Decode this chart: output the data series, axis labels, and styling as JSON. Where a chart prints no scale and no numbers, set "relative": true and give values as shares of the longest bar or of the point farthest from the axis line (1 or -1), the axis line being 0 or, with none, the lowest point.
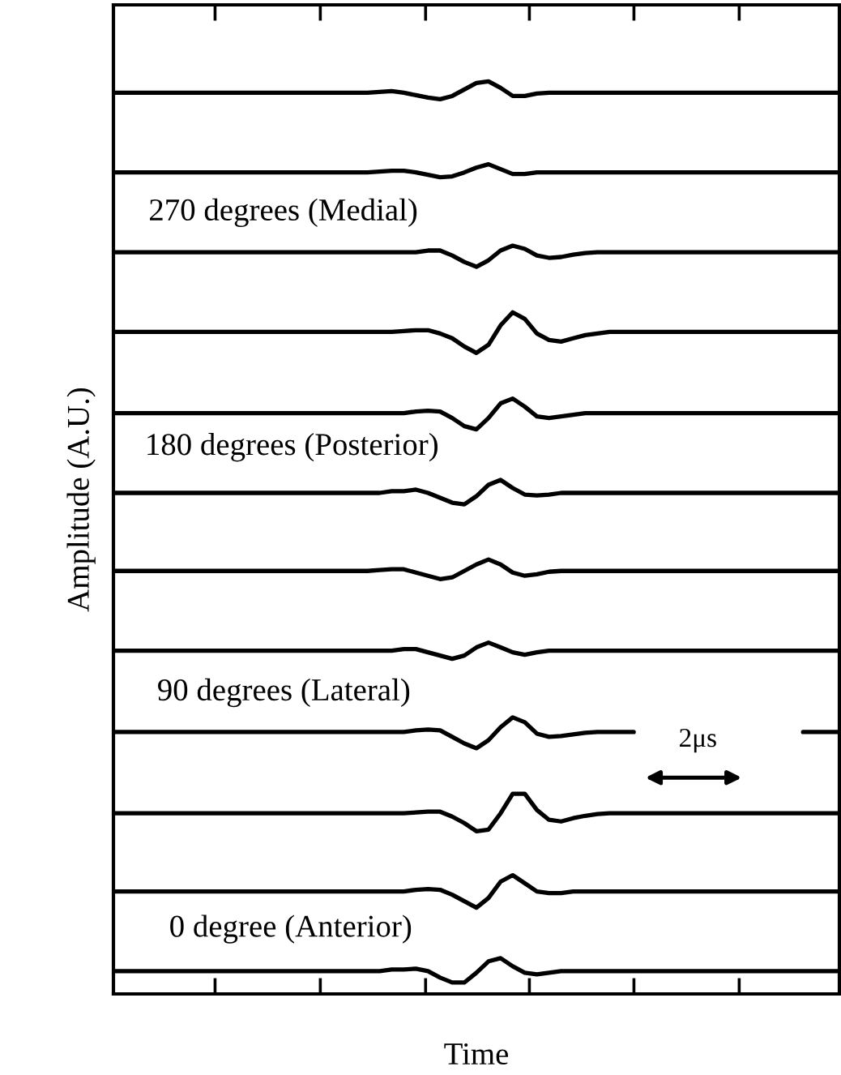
{
  "chart_data": {
    "type": "line",
    "relative": true,
    "xlabel": "Time",
    "ylabel": "Amplitude (A.U.)",
    "categories": [
      null,
      null,
      null,
      null,
      null,
      null,
      null,
      null,
      null,
      null,
      null,
      null,
      null,
      null,
      null,
      null,
      null,
      null,
      null,
      null,
      null,
      null,
      null,
      null,
      null,
      null,
      null,
      null,
      null,
      null,
      null,
      null,
      null,
      null,
      null,
      null,
      null,
      null,
      null,
      null,
      null,
      null,
      null,
      null,
      null,
      null,
      null,
      null,
      null,
      null,
      null,
      null,
      null,
      null,
      null,
      null,
      null,
      null,
      null,
      null,
      null
    ],
    "annotations": [
      "270 degrees (Medial)",
      "180 degrees (Posterior)",
      "90 degrees (Lateral)",
      "0 degree (Anterior)",
      "2μs"
    ],
    "grid": false,
    "marker": "none",
    "line_style": "solid",
    "series": [
      {
        "color": "#000000",
        "values": [
          0.9875,
          0.9875,
          0.9875,
          0.9875,
          0.9875,
          0.9875,
          0.9875,
          0.9875,
          0.9875,
          0.9875,
          0.9875,
          0.9875,
          0.9875,
          0.9875,
          0.9875,
          0.9875,
          0.9875,
          0.9875,
          0.9875,
          0.9875,
          0.9875,
          0.9875,
          0.9884,
          0.9893,
          0.9875,
          0.9848,
          0.9822,
          0.9804,
          0.9839,
          0.9911,
          0.9982,
          1.0,
          0.9928,
          0.9839,
          0.9839,
          0.9866,
          0.9875,
          0.9875,
          0.9875,
          0.9875,
          0.9875,
          0.9875,
          0.9875,
          0.9875,
          0.9875,
          0.9875,
          0.9875,
          0.9875,
          0.9875,
          0.9875,
          0.9875,
          0.9875,
          0.9875,
          0.9875,
          0.9875,
          0.9875,
          0.9875,
          0.9875,
          0.9875,
          0.9875,
          0.9875
        ]
      },
      {
        "color": "#000000",
        "values": [
          0.9002,
          0.9002,
          0.9002,
          0.9002,
          0.9002,
          0.9002,
          0.9002,
          0.9002,
          0.9002,
          0.9002,
          0.9002,
          0.9002,
          0.9002,
          0.9002,
          0.9002,
          0.9002,
          0.9002,
          0.9002,
          0.9002,
          0.9002,
          0.9002,
          0.9002,
          0.9011,
          0.902,
          0.902,
          0.9002,
          0.8975,
          0.8949,
          0.8958,
          0.9002,
          0.9055,
          0.9091,
          0.9038,
          0.8984,
          0.8984,
          0.9002,
          0.9002,
          0.9002,
          0.9002,
          0.9002,
          0.9002,
          0.9002,
          0.9002,
          0.9002,
          0.9002,
          0.9002,
          0.9002,
          0.9002,
          0.9002,
          0.9002,
          0.9002,
          0.9002,
          0.9002,
          0.9002,
          0.9002,
          0.9002,
          0.9002,
          0.9002,
          0.9002,
          0.9002,
          0.9002
        ]
      },
      {
        "color": "#000000",
        "values": [
          0.8128,
          0.8128,
          0.8128,
          0.8128,
          0.8128,
          0.8128,
          0.8128,
          0.8128,
          0.8128,
          0.8128,
          0.8128,
          0.8128,
          0.8128,
          0.8128,
          0.8128,
          0.8128,
          0.8128,
          0.8128,
          0.8128,
          0.8128,
          0.8128,
          0.8128,
          0.8128,
          0.8128,
          0.8128,
          0.8128,
          0.8146,
          0.8146,
          0.8092,
          0.8021,
          0.7968,
          0.8039,
          0.8146,
          0.8199,
          0.8164,
          0.8092,
          0.8066,
          0.8075,
          0.8101,
          0.8119,
          0.8128,
          0.8128,
          0.8128,
          0.8128,
          0.8128,
          0.8128,
          0.8128,
          0.8128,
          0.8128,
          0.8128,
          0.8128,
          0.8128,
          0.8128,
          0.8128,
          0.8128,
          0.8128,
          0.8128,
          0.8128,
          0.8128,
          0.8128,
          0.8128
        ]
      },
      {
        "color": "#000000",
        "values": [
          0.7255,
          0.7255,
          0.7255,
          0.7255,
          0.7255,
          0.7255,
          0.7255,
          0.7255,
          0.7255,
          0.7255,
          0.7255,
          0.7255,
          0.7255,
          0.7255,
          0.7255,
          0.7255,
          0.7255,
          0.7255,
          0.7255,
          0.7255,
          0.7255,
          0.7255,
          0.7255,
          0.7255,
          0.7264,
          0.7273,
          0.7273,
          0.7237,
          0.7184,
          0.7095,
          0.7024,
          0.7113,
          0.7326,
          0.7469,
          0.7397,
          0.7237,
          0.7166,
          0.7148,
          0.7184,
          0.7219,
          0.7237,
          0.7255,
          0.7255,
          0.7255,
          0.7255,
          0.7255,
          0.7255,
          0.7255,
          0.7255,
          0.7255,
          0.7255,
          0.7255,
          0.7255,
          0.7255,
          0.7255,
          0.7255,
          0.7255,
          0.7255,
          0.7255,
          0.7255,
          0.7255
        ]
      },
      {
        "color": "#000000",
        "values": [
          0.6364,
          0.6364,
          0.6364,
          0.6364,
          0.6364,
          0.6364,
          0.6364,
          0.6364,
          0.6364,
          0.6364,
          0.6364,
          0.6364,
          0.6364,
          0.6364,
          0.6364,
          0.6364,
          0.6364,
          0.6364,
          0.6364,
          0.6364,
          0.6364,
          0.6364,
          0.6364,
          0.6364,
          0.6364,
          0.6382,
          0.6391,
          0.6382,
          0.6311,
          0.6222,
          0.6186,
          0.6311,
          0.6471,
          0.6524,
          0.6435,
          0.6328,
          0.6311,
          0.6328,
          0.6346,
          0.6364,
          0.6364,
          0.6364,
          0.6364,
          0.6364,
          0.6364,
          0.6364,
          0.6364,
          0.6364,
          0.6364,
          0.6364,
          0.6364,
          0.6364,
          0.6364,
          0.6364,
          0.6364,
          0.6364,
          0.6364,
          0.6364,
          0.6364,
          0.6364,
          0.6364
        ]
      },
      {
        "color": "#000000",
        "values": [
          0.549,
          0.549,
          0.549,
          0.549,
          0.549,
          0.549,
          0.549,
          0.549,
          0.549,
          0.549,
          0.549,
          0.549,
          0.549,
          0.549,
          0.549,
          0.549,
          0.549,
          0.549,
          0.549,
          0.549,
          0.549,
          0.549,
          0.549,
          0.5508,
          0.5508,
          0.5526,
          0.549,
          0.5437,
          0.5383,
          0.5365,
          0.5454,
          0.5579,
          0.5632,
          0.5543,
          0.5472,
          0.5463,
          0.5472,
          0.549,
          0.549,
          0.549,
          0.549,
          0.549,
          0.549,
          0.549,
          0.549,
          0.549,
          0.549,
          0.549,
          0.549,
          0.549,
          0.549,
          0.549,
          0.549,
          0.549,
          0.549,
          0.549,
          0.549,
          0.549,
          0.549,
          0.549,
          0.549
        ]
      },
      {
        "color": "#000000",
        "values": [
          0.4635,
          0.4635,
          0.4635,
          0.4635,
          0.4635,
          0.4635,
          0.4635,
          0.4635,
          0.4635,
          0.4635,
          0.4635,
          0.4635,
          0.4635,
          0.4635,
          0.4635,
          0.4635,
          0.4635,
          0.4635,
          0.4635,
          0.4635,
          0.4635,
          0.4635,
          0.4644,
          0.4653,
          0.4653,
          0.4617,
          0.4582,
          0.4546,
          0.4564,
          0.4635,
          0.4706,
          0.476,
          0.4706,
          0.4617,
          0.4582,
          0.4599,
          0.4626,
          0.4635,
          0.4635,
          0.4635,
          0.4635,
          0.4635,
          0.4635,
          0.4635,
          0.4635,
          0.4635,
          0.4635,
          0.4635,
          0.4635,
          0.4635,
          0.4635,
          0.4635,
          0.4635,
          0.4635,
          0.4635,
          0.4635,
          0.4635,
          0.4635,
          0.4635,
          0.4635,
          0.4635
        ]
      },
      {
        "color": "#000000",
        "values": [
          0.3761,
          0.3761,
          0.3761,
          0.3761,
          0.3761,
          0.3761,
          0.3761,
          0.3761,
          0.3761,
          0.3761,
          0.3761,
          0.3761,
          0.3761,
          0.3761,
          0.3761,
          0.3761,
          0.3761,
          0.3761,
          0.3761,
          0.3761,
          0.3761,
          0.3761,
          0.3761,
          0.3761,
          0.3779,
          0.3779,
          0.3743,
          0.3708,
          0.3672,
          0.3708,
          0.3797,
          0.385,
          0.3797,
          0.3743,
          0.3717,
          0.3743,
          0.3761,
          0.3761,
          0.3761,
          0.3761,
          0.3761,
          0.3761,
          0.3761,
          0.3761,
          0.3761,
          0.3761,
          0.3761,
          0.3761,
          0.3761,
          0.3761,
          0.3761,
          0.3761,
          0.3761,
          0.3761,
          0.3761,
          0.3761,
          0.3761,
          0.3761,
          0.3761,
          0.3761,
          0.3761
        ]
      },
      {
        "color": "#000000",
        "values": [
          0.287,
          0.287,
          0.287,
          0.287,
          0.287,
          0.287,
          0.287,
          0.287,
          0.287,
          0.287,
          0.287,
          0.287,
          0.287,
          0.287,
          0.287,
          0.287,
          0.287,
          0.287,
          0.287,
          0.287,
          0.287,
          0.287,
          0.287,
          0.287,
          0.287,
          0.2888,
          0.2897,
          0.2888,
          0.2817,
          0.2745,
          0.2692,
          0.2781,
          0.2923,
          0.303,
          0.2977,
          0.2852,
          0.2817,
          0.2826,
          0.2843,
          0.2861,
          0.287,
          0.287,
          0.287,
          0.287,
          null,
          null,
          null,
          null,
          null,
          null,
          null,
          null,
          null,
          null,
          null,
          null,
          null,
          0.287,
          0.287,
          0.287,
          0.287
        ]
      },
      {
        "color": "#000000",
        "values": [
          0.1979,
          0.1979,
          0.1979,
          0.1979,
          0.1979,
          0.1979,
          0.1979,
          0.1979,
          0.1979,
          0.1979,
          0.1979,
          0.1979,
          0.1979,
          0.1979,
          0.1979,
          0.1979,
          0.1979,
          0.1979,
          0.1979,
          0.1979,
          0.1979,
          0.1979,
          0.1979,
          0.1979,
          0.1979,
          0.1988,
          0.1997,
          0.1997,
          0.1943,
          0.1872,
          0.1783,
          0.1801,
          0.1979,
          0.2193,
          0.2193,
          0.2015,
          0.1908,
          0.189,
          0.1926,
          0.1952,
          0.197,
          0.1979,
          0.1979,
          0.1979,
          0.1979,
          0.1979,
          0.1979,
          0.1979,
          0.1979,
          0.1979,
          0.1979,
          0.1979,
          0.1979,
          0.1979,
          0.1979,
          0.1979,
          0.1979,
          0.1979,
          0.1979,
          0.1979,
          0.1979
        ]
      },
      {
        "color": "#000000",
        "values": [
          0.1123,
          0.1123,
          0.1123,
          0.1123,
          0.1123,
          0.1123,
          0.1123,
          0.1123,
          0.1123,
          0.1123,
          0.1123,
          0.1123,
          0.1123,
          0.1123,
          0.1123,
          0.1123,
          0.1123,
          0.1123,
          0.1123,
          0.1123,
          0.1123,
          0.1123,
          0.1123,
          0.1123,
          0.1123,
          0.1141,
          0.115,
          0.1141,
          0.1087,
          0.1016,
          0.0945,
          0.1052,
          0.123,
          0.1301,
          0.1212,
          0.1123,
          0.1105,
          0.1105,
          0.1123,
          0.1123,
          0.1123,
          0.1123,
          0.1123,
          0.1123,
          0.1123,
          0.1123,
          0.1123,
          0.1123,
          0.1123,
          0.1123,
          0.1123,
          0.1123,
          0.1123,
          0.1123,
          0.1123,
          0.1123,
          0.1123,
          0.1123,
          0.1123,
          0.1123,
          0.1123
        ]
      },
      {
        "color": "#000000",
        "values": [
          0.025,
          0.025,
          0.025,
          0.025,
          0.025,
          0.025,
          0.025,
          0.025,
          0.025,
          0.025,
          0.025,
          0.025,
          0.025,
          0.025,
          0.025,
          0.025,
          0.025,
          0.025,
          0.025,
          0.025,
          0.025,
          0.025,
          0.025,
          0.0268,
          0.0268,
          0.0277,
          0.025,
          0.0179,
          0.0125,
          0.0125,
          0.0232,
          0.0357,
          0.0392,
          0.0303,
          0.0232,
          0.0214,
          0.0232,
          0.025,
          0.025,
          0.025,
          0.025,
          0.025,
          0.025,
          0.025,
          0.025,
          0.025,
          0.025,
          0.025,
          0.025,
          0.025,
          0.025,
          0.025,
          0.025,
          0.025,
          0.025,
          0.025,
          0.025,
          0.025,
          0.025,
          0.025,
          0.025
        ]
      }
    ]
  }
}
